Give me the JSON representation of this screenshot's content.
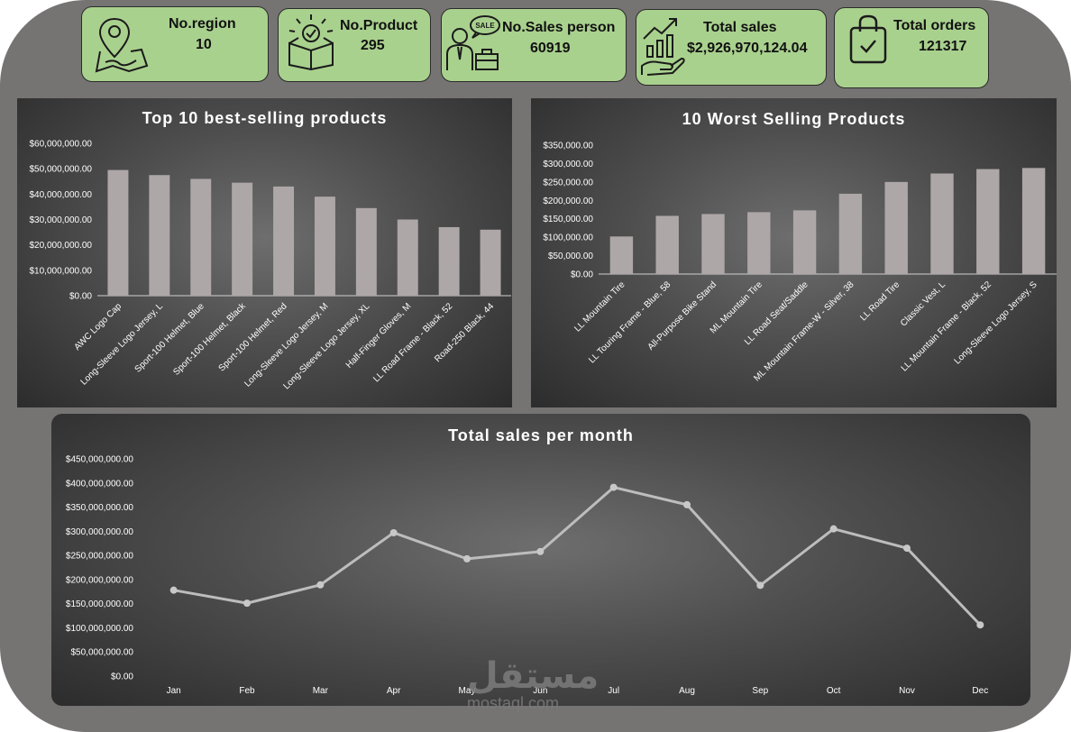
{
  "kpis": [
    {
      "key": "region",
      "title": "No.region",
      "value": "10",
      "icon": "map-pin-icon"
    },
    {
      "key": "product",
      "title": "No.Product",
      "value": "295",
      "icon": "product-box-icon"
    },
    {
      "key": "salesperson",
      "title": "No.Sales person",
      "value": "60919",
      "icon": "salesperson-icon",
      "icon_text": "SALE"
    },
    {
      "key": "sales",
      "title": "Total sales",
      "value": "$2,926,970,124.04",
      "icon": "growth-hand-icon"
    },
    {
      "key": "orders",
      "title": "Total orders",
      "value": "121317",
      "icon": "shopping-bag-icon"
    }
  ],
  "watermark": {
    "arabic": "مستقل",
    "latin": "mostaql.com"
  },
  "colors": {
    "card": "#a9d18e",
    "bar": "#aea7a7",
    "line": "#bdbdbd",
    "text": "#ffffff"
  },
  "chart_data": [
    {
      "type": "bar",
      "title": "Top 10 best-selling products",
      "categories": [
        "AWC Logo Cap",
        "Long-Sleeve Logo Jersey, L",
        "Sport-100 Helmet, Blue",
        "Sport-100 Helmet, Black",
        "Sport-100 Helmet, Red",
        "Long-Sleeve Logo Jersey, M",
        "Long-Sleeve Logo Jersey, XL",
        "Half-Finger Gloves, M",
        "LL Road Frame - Black, 52",
        "Road-250 Black, 44"
      ],
      "values": [
        49500000,
        47500000,
        46000000,
        44500000,
        43000000,
        39000000,
        34500000,
        30000000,
        27000000,
        26000000
      ],
      "ylim": [
        0,
        60000000
      ],
      "yticks": [
        0,
        10000000,
        20000000,
        30000000,
        40000000,
        50000000,
        60000000
      ],
      "ytick_labels": [
        "$0.00",
        "$10,000,000.00",
        "$20,000,000.00",
        "$30,000,000.00",
        "$40,000,000.00",
        "$50,000,000.00",
        "$60,000,000.00"
      ],
      "grid": false
    },
    {
      "type": "bar",
      "title": "10 Worst Selling Products",
      "categories": [
        "LL Mountain Tire",
        "LL Touring Frame - Blue, 58",
        "All-Purpose Bike Stand",
        "ML Mountain Tire",
        "LL Road Seat/Saddle",
        "ML Mountain Frame-W - Silver, 38",
        "LL Road Tire",
        "Classic Vest, L",
        "LL Mountain Frame - Black, 52",
        "Long-Sleeve Logo Jersey, S"
      ],
      "values": [
        102000,
        158000,
        163000,
        168000,
        173000,
        218000,
        250000,
        273000,
        285000,
        288000
      ],
      "ylim": [
        0,
        350000
      ],
      "yticks": [
        0,
        50000,
        100000,
        150000,
        200000,
        250000,
        300000,
        350000
      ],
      "ytick_labels": [
        "$0.00",
        "$50,000.00",
        "$100,000.00",
        "$150,000.00",
        "$200,000.00",
        "$250,000.00",
        "$300,000.00",
        "$350,000.00"
      ],
      "grid": false
    },
    {
      "type": "line",
      "title": "Total sales per month",
      "categories": [
        "Jan",
        "Feb",
        "Mar",
        "Apr",
        "May",
        "Jun",
        "Jul",
        "Aug",
        "Sep",
        "Oct",
        "Nov",
        "Dec"
      ],
      "values": [
        178000000,
        151000000,
        189000000,
        297000000,
        243000000,
        258000000,
        391000000,
        355000000,
        188000000,
        305000000,
        265000000,
        106000000
      ],
      "ylim": [
        0,
        450000000
      ],
      "yticks": [
        0,
        50000000,
        100000000,
        150000000,
        200000000,
        250000000,
        300000000,
        350000000,
        400000000,
        450000000
      ],
      "ytick_labels": [
        "$0.00",
        "$50,000,000.00",
        "$100,000,000.00",
        "$150,000,000.00",
        "$200,000,000.00",
        "$250,000,000.00",
        "$300,000,000.00",
        "$350,000,000.00",
        "$400,000,000.00",
        "$450,000,000.00"
      ],
      "grid": false
    }
  ]
}
